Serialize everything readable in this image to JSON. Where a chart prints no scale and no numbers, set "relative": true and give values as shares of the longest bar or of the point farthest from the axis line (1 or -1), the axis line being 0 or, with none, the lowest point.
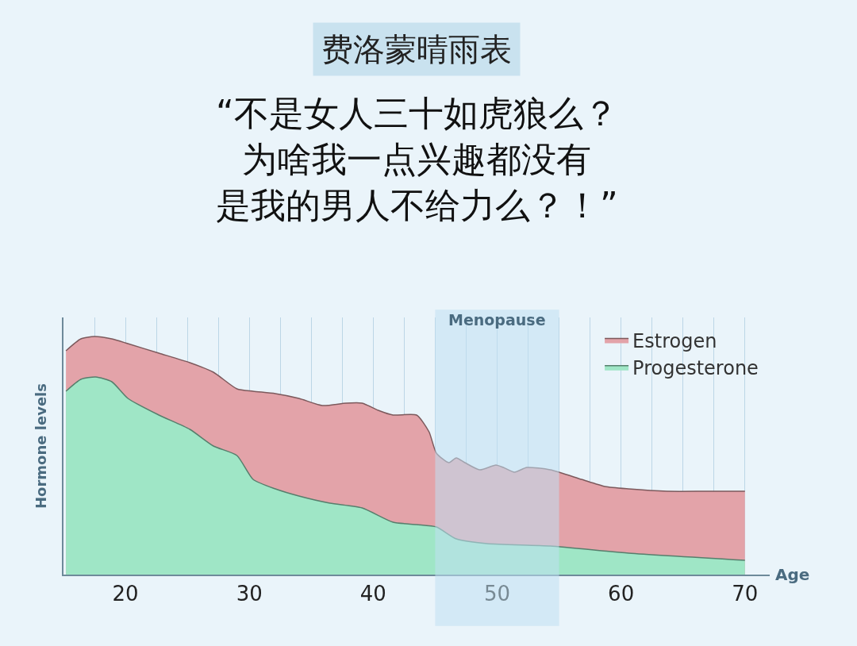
{
  "chart_data": {
    "type": "area",
    "title": "费洛蒙晴雨表",
    "annotations": [
      "“不是女人三十如虎狼么？",
      "为啥我一点兴趣都没有",
      "是我的男人不给力么？！”"
    ],
    "xlabel": "Age",
    "ylabel": "Hormone levels",
    "relative": true,
    "xlim": [
      15,
      72
    ],
    "xticks": [
      {
        "value": 17.5,
        "label": null
      },
      20,
      {
        "value": 22.5,
        "label": null
      },
      {
        "value": 25,
        "label": null
      },
      {
        "value": 27.5,
        "label": null
      },
      30,
      {
        "value": 32.5,
        "label": null
      },
      {
        "value": 35,
        "label": null
      },
      {
        "value": 37.5,
        "label": null
      },
      40,
      {
        "value": 42.5,
        "label": null
      },
      {
        "value": 45,
        "label": null
      },
      {
        "value": 47.5,
        "label": null
      },
      50,
      {
        "value": 52.5,
        "label": null
      },
      {
        "value": 55,
        "label": null
      },
      {
        "value": 57.5,
        "label": null
      },
      60,
      {
        "value": 62.5,
        "label": null
      },
      {
        "value": 65,
        "label": null
      },
      {
        "value": 67.5,
        "label": null
      },
      70
    ],
    "grid": "x",
    "legend": "top right",
    "bands": [
      {
        "axis": "x",
        "from": 45,
        "to": 55,
        "label": "Menopause",
        "color": "#bfe0f3"
      }
    ],
    "series": [
      {
        "name": "Estrogen",
        "color": "#e3a3a9",
        "x": [
          15.2,
          16.4,
          17.5,
          18.9,
          20.2,
          22.7,
          25.2,
          27.1,
          29.0,
          30.3,
          32.1,
          34.0,
          35.9,
          37.8,
          39.1,
          40.4,
          41.6,
          43.5,
          44.5,
          45.1,
          46.1,
          46.7,
          47.4,
          48.6,
          49.9,
          50.5,
          51.4,
          52.4,
          54.3,
          56.8,
          58.7,
          60.6,
          63.7,
          66.9,
          70
        ],
        "values": [
          0.94,
          0.99,
          1.0,
          0.99,
          0.97,
          0.93,
          0.89,
          0.85,
          0.78,
          0.77,
          0.76,
          0.74,
          0.71,
          0.72,
          0.72,
          0.69,
          0.67,
          0.67,
          0.6,
          0.51,
          0.47,
          0.49,
          0.47,
          0.44,
          0.46,
          0.45,
          0.43,
          0.45,
          0.44,
          0.4,
          0.37,
          0.36,
          0.35,
          0.35,
          0.35
        ]
      },
      {
        "name": "Progesterone",
        "color": "#9fe6c6",
        "x": [
          15.2,
          16.4,
          17.6,
          18.9,
          20.2,
          22.7,
          25.2,
          27.1,
          29.0,
          30.3,
          32.1,
          34.0,
          36.5,
          39.1,
          41.6,
          43.5,
          45.1,
          46.7,
          49.2,
          54.3,
          60.6,
          70
        ],
        "values": [
          0.77,
          0.82,
          0.83,
          0.81,
          0.74,
          0.67,
          0.61,
          0.54,
          0.5,
          0.4,
          0.36,
          0.33,
          0.3,
          0.28,
          0.22,
          0.21,
          0.2,
          0.15,
          0.13,
          0.12,
          0.09,
          0.06
        ]
      }
    ]
  }
}
